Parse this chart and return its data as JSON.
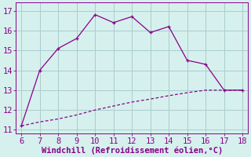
{
  "xlabel": "Windchill (Refroidissement éolien,°C)",
  "xlim": [
    5.7,
    18.3
  ],
  "ylim": [
    10.8,
    17.4
  ],
  "xticks": [
    6,
    7,
    8,
    9,
    10,
    11,
    12,
    13,
    14,
    15,
    16,
    17,
    18
  ],
  "yticks": [
    11,
    12,
    13,
    14,
    15,
    16,
    17
  ],
  "bg_color": "#d6f0ee",
  "line_color": "#880088",
  "grid_color": "#aacccc",
  "curve1_x": [
    6,
    7,
    8,
    9,
    10,
    11,
    12,
    13,
    14,
    15,
    16,
    17,
    18
  ],
  "curve1_y": [
    11.2,
    14.0,
    15.1,
    15.6,
    16.8,
    16.4,
    16.7,
    15.9,
    16.2,
    14.5,
    14.3,
    13.0,
    13.0
  ],
  "curve2_x": [
    6,
    7,
    8,
    9,
    10,
    11,
    12,
    13,
    14,
    15,
    16,
    17,
    18
  ],
  "curve2_y": [
    11.2,
    11.4,
    11.55,
    11.75,
    12.0,
    12.2,
    12.4,
    12.55,
    12.72,
    12.87,
    13.0,
    13.0,
    13.0
  ],
  "font_color": "#880088",
  "xlabel_fontsize": 7.5,
  "tick_fontsize": 7.5
}
